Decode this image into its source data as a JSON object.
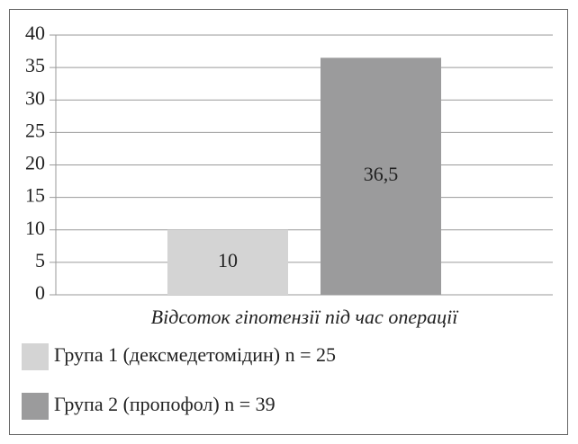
{
  "chart_data": {
    "type": "bar",
    "categories": [
      "Відсоток гіпотензії під час операції"
    ],
    "series": [
      {
        "name": "Група 1 (дексмедетомідин) n = 25",
        "color": "#d4d4d4",
        "values": [
          10
        ]
      },
      {
        "name": "Група 2 (пропофол) n = 39",
        "color": "#9b9b9c",
        "values": [
          36.5
        ],
        "value_labels": [
          "36,5"
        ]
      }
    ],
    "ylim": [
      0,
      40
    ],
    "yticks": [
      0,
      5,
      10,
      15,
      20,
      25,
      30,
      35,
      40
    ],
    "grid": true,
    "legend": "bottom"
  }
}
